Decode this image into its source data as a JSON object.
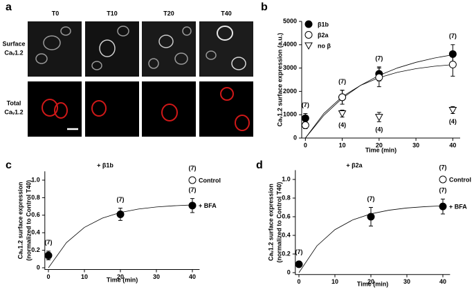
{
  "images": {
    "panel": "a",
    "columns": [
      "T0",
      "T10",
      "T20",
      "T40"
    ],
    "rows": [
      [
        "Surface",
        "Caᵥ1.2"
      ],
      [
        "Total",
        "Caᵥ1.2"
      ]
    ]
  },
  "chart_data": [
    {
      "type": "scatter",
      "panel": "b",
      "x_label": "Time (min)",
      "y_label": [
        "Caᵥ1.2 surface expression (a.u.)"
      ],
      "xlim": [
        -1,
        42
      ],
      "ylim": [
        0,
        5000
      ],
      "xticks": [
        0,
        10,
        20,
        30,
        40
      ],
      "yticks": [
        0,
        1000,
        2000,
        3000,
        4000,
        5000
      ],
      "legend": "upper left",
      "series": [
        {
          "name": "β1b",
          "color": "#000000",
          "marker": "circle",
          "fill": "#000000",
          "x": [
            0,
            10,
            20,
            40
          ],
          "values": [
            850,
            1750,
            2750,
            3600
          ],
          "errors": [
            200,
            300,
            300,
            400
          ],
          "n_labels": [
            "(7)",
            "(7)",
            "(7)",
            "(7)"
          ],
          "n_label_position": "above"
        },
        {
          "name": "β2a",
          "color": "#000000",
          "marker": "circle",
          "fill": "#ffffff",
          "x": [
            0,
            10,
            20,
            40
          ],
          "values": [
            550,
            1750,
            2600,
            3150
          ],
          "errors": [
            150,
            300,
            400,
            500
          ]
        },
        {
          "name": "no β",
          "color": "#000000",
          "marker": "triangle-down",
          "fill": "#ffffff",
          "x": [
            10,
            20,
            40
          ],
          "values": [
            1050,
            900,
            1200
          ],
          "errors": [
            150,
            200,
            150
          ],
          "n_labels": [
            "(4)",
            "(4)",
            "(4)"
          ],
          "n_label_position": "below"
        }
      ],
      "fits": [
        {
          "color": "#000000",
          "x": [
            0,
            5,
            10,
            15,
            20,
            25,
            30,
            35,
            40
          ],
          "values": [
            0,
            971,
            1705,
            2261,
            2684,
            3005,
            3245,
            3428,
            3570
          ]
        },
        {
          "color": "#000000",
          "x": [
            0,
            5,
            10,
            15,
            20,
            25,
            30,
            35,
            40
          ],
          "values": [
            0,
            1052,
            1772,
            2261,
            2590,
            2818,
            2973,
            3076,
            3148
          ]
        }
      ]
    },
    {
      "type": "scatter",
      "panel": "c",
      "title": "+ β1b",
      "x_label": "Time (min)",
      "y_label": [
        "Caᵥ1.2 surface expression",
        "(normalized to Control T40)"
      ],
      "xlim": [
        -1,
        42
      ],
      "ylim": [
        -0.02,
        1.1
      ],
      "xticks": [
        0,
        10,
        20,
        30,
        40
      ],
      "yticks": [
        0,
        0.2,
        0.4,
        0.6,
        0.8,
        {
          "value": 1,
          "label": "1.0"
        }
      ],
      "legend": "direct",
      "series": [
        {
          "name": "Control",
          "color": "#000000",
          "marker": "circle",
          "fill": "#ffffff",
          "x": [
            40
          ],
          "values": [
            1
          ],
          "n_labels": [
            "(7)"
          ],
          "n_label_position": "above"
        },
        {
          "name": "+ BFA",
          "color": "#000000",
          "marker": "circle",
          "fill": "#000000",
          "x": [
            0,
            20,
            40
          ],
          "values": [
            0.14,
            0.61,
            0.71
          ],
          "errors": [
            0.05,
            0.07,
            0.08
          ],
          "n_labels": [
            "(7)",
            "(7)",
            "(7)"
          ],
          "n_label_position": "above"
        }
      ],
      "fits": [
        {
          "color": "#000000",
          "x": [
            0,
            5,
            10,
            15,
            20,
            25,
            30,
            35,
            40
          ],
          "values": [
            0,
            0.287,
            0.461,
            0.567,
            0.631,
            0.67,
            0.694,
            0.708,
            0.717
          ]
        }
      ]
    },
    {
      "type": "scatter",
      "panel": "d",
      "title": "+ β2a",
      "x_label": "Time (min)",
      "y_label": [
        "Caᵥ1.2 surface expression",
        "(normalized to Control T40)"
      ],
      "xlim": [
        -1,
        42
      ],
      "ylim": [
        -0.02,
        1.1
      ],
      "xticks": [
        0,
        10,
        20,
        30,
        40
      ],
      "yticks": [
        0,
        0.2,
        0.4,
        0.6,
        0.8,
        {
          "value": 1,
          "label": "1.0"
        }
      ],
      "legend": "direct",
      "series": [
        {
          "name": "Control",
          "color": "#000000",
          "marker": "circle",
          "fill": "#ffffff",
          "x": [
            40
          ],
          "values": [
            1
          ],
          "n_labels": [
            "(7)"
          ],
          "n_label_position": "above"
        },
        {
          "name": "+ BFA",
          "color": "#000000",
          "marker": "circle",
          "fill": "#000000",
          "x": [
            0,
            20,
            40
          ],
          "values": [
            0.09,
            0.6,
            0.71
          ],
          "errors": [
            0.03,
            0.1,
            0.08
          ],
          "n_labels": [
            "(7)",
            "(7)",
            "(7)"
          ],
          "n_label_position": "above"
        }
      ],
      "fits": [
        {
          "color": "#000000",
          "x": [
            0,
            5,
            10,
            15,
            20,
            25,
            30,
            35,
            40
          ],
          "values": [
            0,
            0.287,
            0.461,
            0.567,
            0.631,
            0.67,
            0.694,
            0.708,
            0.717
          ]
        }
      ]
    }
  ]
}
